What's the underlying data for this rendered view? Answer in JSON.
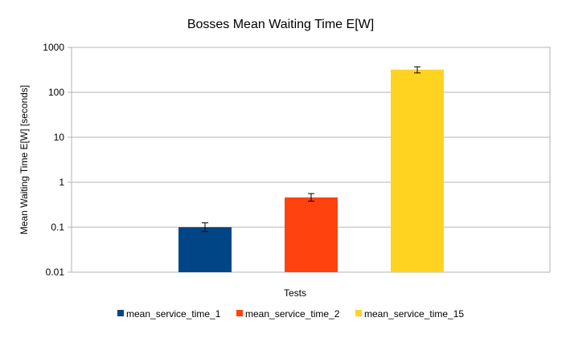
{
  "chart_data": {
    "type": "bar",
    "title": "Bosses Mean Waiting Time E[W]",
    "xlabel": "Tests",
    "ylabel": "Mean Waiting Time E[W] [seconds]",
    "yscale": "log",
    "ylim": [
      0.01,
      1000
    ],
    "yticks": [
      {
        "value": 0.01,
        "label": "0.01"
      },
      {
        "value": 0.1,
        "label": "0.1"
      },
      {
        "value": 1,
        "label": "1"
      },
      {
        "value": 10,
        "label": "10"
      },
      {
        "value": 100,
        "label": "100"
      },
      {
        "value": 1000,
        "label": "1000"
      }
    ],
    "grid": true,
    "legend_position": "bottom",
    "series": [
      {
        "name": "mean_service_time_1",
        "value": 0.1,
        "error_low": 0.08,
        "error_high": 0.125,
        "color": "#004586"
      },
      {
        "name": "mean_service_time_2",
        "value": 0.46,
        "error_low": 0.38,
        "error_high": 0.56,
        "color": "#ff420e"
      },
      {
        "name": "mean_service_time_15",
        "value": 320,
        "error_low": 270,
        "error_high": 370,
        "color": "#ffd320"
      }
    ]
  }
}
